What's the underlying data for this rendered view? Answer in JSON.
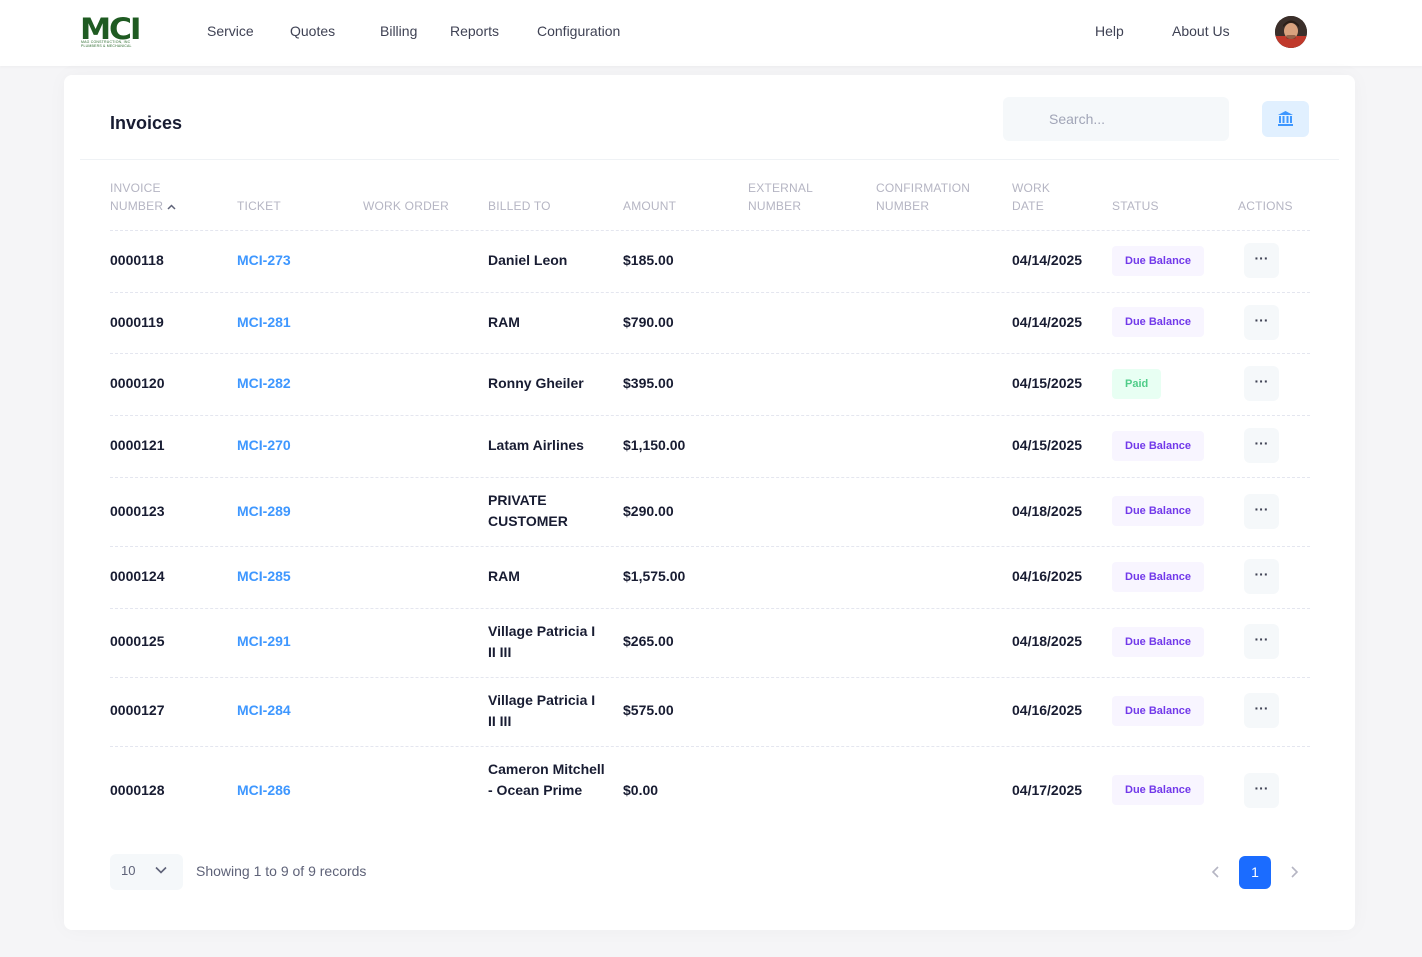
{
  "brand": {
    "logo_text": "MCI",
    "logo_subtitle": "MAG CONSTRUCTION, INC",
    "logo_subtitle2": "PLUMBERS & MECHANICAL",
    "primary_color": "#1f5b22"
  },
  "nav": {
    "items": [
      "Service",
      "Quotes",
      "Billing",
      "Reports",
      "Configuration"
    ],
    "help": "Help",
    "about": "About Us"
  },
  "page": {
    "title": "Invoices",
    "search_placeholder": "Search...",
    "bank_button_icon": "bank-icon"
  },
  "table": {
    "headers": {
      "invoice_number_1": "INVOICE",
      "invoice_number_2": "NUMBER",
      "ticket": "TICKET",
      "work_order": "WORK ORDER",
      "billed_to": "BILLED TO",
      "amount": "AMOUNT",
      "external_1": "EXTERNAL",
      "external_2": "NUMBER",
      "confirmation_1": "CONFIRMATION",
      "confirmation_2": "NUMBER",
      "work_date_1": "WORK",
      "work_date_2": "DATE",
      "status": "STATUS",
      "actions": "ACTIONS"
    },
    "sort": {
      "column": "invoice_number",
      "direction": "asc"
    },
    "rows": [
      {
        "invoice": "0000118",
        "ticket": "MCI-273",
        "work_order": "",
        "billed_to": "Daniel Leon",
        "amount": "$185.00",
        "external": "",
        "confirmation": "",
        "work_date": "04/14/2025",
        "status": "Due Balance",
        "actions": "···"
      },
      {
        "invoice": "0000119",
        "ticket": "MCI-281",
        "work_order": "",
        "billed_to": "RAM",
        "amount": "$790.00",
        "external": "",
        "confirmation": "",
        "work_date": "04/14/2025",
        "status": "Due Balance",
        "actions": "···"
      },
      {
        "invoice": "0000120",
        "ticket": "MCI-282",
        "work_order": "",
        "billed_to": "Ronny Gheiler",
        "amount": "$395.00",
        "external": "",
        "confirmation": "",
        "work_date": "04/15/2025",
        "status": "Paid",
        "actions": "···"
      },
      {
        "invoice": "0000121",
        "ticket": "MCI-270",
        "work_order": "",
        "billed_to": "Latam Airlines",
        "amount": "$1,150.00",
        "external": "",
        "confirmation": "",
        "work_date": "04/15/2025",
        "status": "Due Balance",
        "actions": "···"
      },
      {
        "invoice": "0000123",
        "ticket": "MCI-289",
        "work_order": "",
        "billed_to": "PRIVATE CUSTOMER",
        "amount": "$290.00",
        "external": "",
        "confirmation": "",
        "work_date": "04/18/2025",
        "status": "Due Balance",
        "actions": "···"
      },
      {
        "invoice": "0000124",
        "ticket": "MCI-285",
        "work_order": "",
        "billed_to": "RAM",
        "amount": "$1,575.00",
        "external": "",
        "confirmation": "",
        "work_date": "04/16/2025",
        "status": "Due Balance",
        "actions": "···"
      },
      {
        "invoice": "0000125",
        "ticket": "MCI-291",
        "work_order": "",
        "billed_to": "Village Patricia I II III",
        "amount": "$265.00",
        "external": "",
        "confirmation": "",
        "work_date": "04/18/2025",
        "status": "Due Balance",
        "actions": "···"
      },
      {
        "invoice": "0000127",
        "ticket": "MCI-284",
        "work_order": "",
        "billed_to": "Village Patricia I II III",
        "amount": "$575.00",
        "external": "",
        "confirmation": "",
        "work_date": "04/16/2025",
        "status": "Due Balance",
        "actions": "···"
      },
      {
        "invoice": "0000128",
        "ticket": "MCI-286",
        "work_order": "",
        "billed_to": "Cameron Mitchell - Ocean Prime",
        "amount": "$0.00",
        "external": "",
        "confirmation": "",
        "work_date": "04/17/2025",
        "status": "Due Balance",
        "actions": "···"
      }
    ]
  },
  "footer": {
    "page_size": "10",
    "records_info": "Showing 1 to 9 of 9 records",
    "current_page": "1"
  },
  "colors": {
    "link": "#3e97ff",
    "due_badge_bg": "#f8f5ff",
    "due_badge_text": "#7239ea",
    "paid_badge_bg": "#e8fff3",
    "paid_badge_text": "#50cd89",
    "pagination_active": "#1b6cff"
  }
}
